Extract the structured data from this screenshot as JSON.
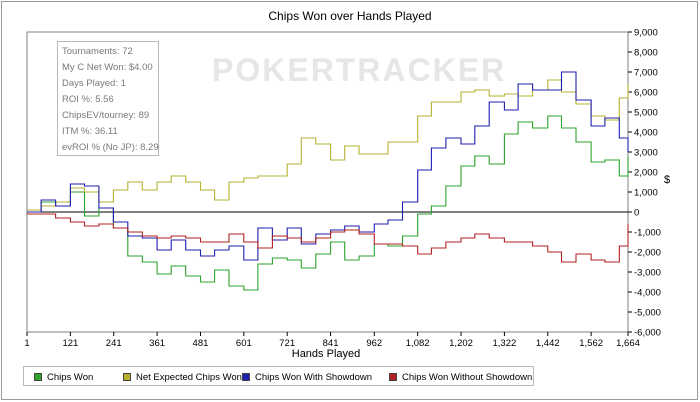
{
  "chart_data": {
    "type": "line",
    "title": "Chips Won over Hands Played",
    "xlabel": "Hands Played",
    "ylabel": "$",
    "xlim": [
      1,
      1664
    ],
    "ylim": [
      -6000,
      9000
    ],
    "x_ticks": [
      "1",
      "121",
      "241",
      "361",
      "481",
      "601",
      "721",
      "841",
      "962",
      "1,082",
      "1,202",
      "1,322",
      "1,442",
      "1,562",
      "1,664"
    ],
    "y_ticks": [
      "9,000",
      "8,000",
      "7,000",
      "6,000",
      "5,000",
      "4,000",
      "3,000",
      "2,000",
      "1,000",
      "0",
      "-1,000",
      "-2,000",
      "-3,000",
      "-4,000",
      "-5,000",
      "-6,000"
    ],
    "grid": false,
    "legend_position": "bottom-left",
    "series": [
      {
        "name": "Chips Won",
        "color": "#2ca32c",
        "x": [
          1,
          40,
          80,
          121,
          160,
          200,
          240,
          280,
          320,
          361,
          400,
          440,
          481,
          520,
          560,
          601,
          640,
          680,
          721,
          760,
          800,
          841,
          880,
          920,
          962,
          1000,
          1040,
          1082,
          1120,
          1160,
          1202,
          1240,
          1280,
          1322,
          1360,
          1400,
          1442,
          1480,
          1520,
          1562,
          1600,
          1640,
          1664
        ],
        "values": [
          0,
          500,
          300,
          1000,
          -200,
          200,
          -800,
          -2200,
          -2500,
          -3100,
          -2700,
          -3200,
          -3500,
          -2900,
          -3700,
          -3900,
          -2600,
          -2300,
          -2400,
          -2800,
          -2100,
          -1500,
          -2400,
          -2200,
          -1600,
          -1700,
          -1200,
          -100,
          300,
          1300,
          2300,
          2800,
          2400,
          3900,
          4500,
          4200,
          4800,
          4200,
          3500,
          2500,
          2600,
          1800,
          2800
        ]
      },
      {
        "name": "Net Expected Chips Won",
        "color": "#b5b030",
        "x": [
          1,
          40,
          80,
          121,
          160,
          200,
          240,
          280,
          320,
          361,
          400,
          440,
          481,
          520,
          560,
          601,
          640,
          680,
          721,
          760,
          800,
          841,
          880,
          920,
          962,
          1000,
          1040,
          1082,
          1120,
          1160,
          1202,
          1240,
          1280,
          1322,
          1360,
          1400,
          1442,
          1480,
          1520,
          1562,
          1600,
          1640,
          1664
        ],
        "values": [
          100,
          300,
          500,
          1200,
          1000,
          500,
          1100,
          1500,
          1100,
          1500,
          1800,
          1500,
          1100,
          600,
          1500,
          1700,
          1800,
          1800,
          2400,
          3700,
          3400,
          2600,
          3300,
          2900,
          2900,
          3500,
          3500,
          4800,
          5500,
          5500,
          6000,
          6100,
          5800,
          5900,
          5800,
          6100,
          6600,
          6000,
          5400,
          4800,
          4600,
          5700,
          6400
        ]
      },
      {
        "name": "Chips Won With Showdown",
        "color": "#1f1fb0",
        "x": [
          1,
          40,
          80,
          121,
          160,
          200,
          240,
          280,
          320,
          361,
          400,
          440,
          481,
          520,
          560,
          601,
          640,
          680,
          721,
          760,
          800,
          841,
          880,
          920,
          962,
          1000,
          1040,
          1082,
          1120,
          1160,
          1202,
          1240,
          1280,
          1322,
          1360,
          1400,
          1442,
          1480,
          1520,
          1562,
          1600,
          1640,
          1664
        ],
        "values": [
          0,
          600,
          300,
          1400,
          1300,
          200,
          -500,
          -1200,
          -1300,
          -1900,
          -1400,
          -1900,
          -2200,
          -1900,
          -1700,
          -2400,
          -800,
          -1400,
          -800,
          -1600,
          -1100,
          -900,
          -700,
          -1000,
          -600,
          -400,
          500,
          2100,
          3200,
          3700,
          3400,
          4300,
          5500,
          5100,
          6400,
          6100,
          6100,
          7000,
          5600,
          4300,
          4700,
          3700,
          3000
        ]
      },
      {
        "name": "Chips Won Without Showdown",
        "color": "#b22222",
        "x": [
          1,
          40,
          80,
          121,
          160,
          200,
          240,
          280,
          320,
          361,
          400,
          440,
          481,
          520,
          560,
          601,
          640,
          680,
          721,
          760,
          800,
          841,
          880,
          920,
          962,
          1000,
          1040,
          1082,
          1120,
          1160,
          1202,
          1240,
          1280,
          1322,
          1360,
          1400,
          1442,
          1480,
          1520,
          1562,
          1600,
          1640,
          1664
        ],
        "values": [
          -100,
          -100,
          -300,
          -500,
          -700,
          -600,
          -800,
          -1000,
          -1200,
          -1300,
          -1200,
          -1300,
          -1500,
          -1500,
          -1100,
          -1500,
          -1800,
          -1200,
          -1300,
          -1500,
          -1300,
          -1000,
          -900,
          -1100,
          -1600,
          -1600,
          -1700,
          -2100,
          -1800,
          -1500,
          -1300,
          -1100,
          -1300,
          -1500,
          -1500,
          -1700,
          -2000,
          -2500,
          -2100,
          -2400,
          -2500,
          -1700,
          -600
        ]
      }
    ]
  },
  "stats": [
    "Tournaments: 72",
    "My C Net Won: $4.00",
    "Days Played: 1",
    "ROI %: 5.56",
    "ChipsEV/tourney: 89",
    "ITM %: 36.11",
    "evROI % (No JP): 8.29"
  ],
  "watermark": "POKERTRACKER",
  "legend": [
    {
      "label": "Chips Won",
      "color": "#2ca32c"
    },
    {
      "label": "Net Expected Chips Won",
      "color": "#b5b030"
    },
    {
      "label": "Chips Won With Showdown",
      "color": "#1f1fb0"
    },
    {
      "label": "Chips Won Without Showdown",
      "color": "#b22222"
    }
  ]
}
